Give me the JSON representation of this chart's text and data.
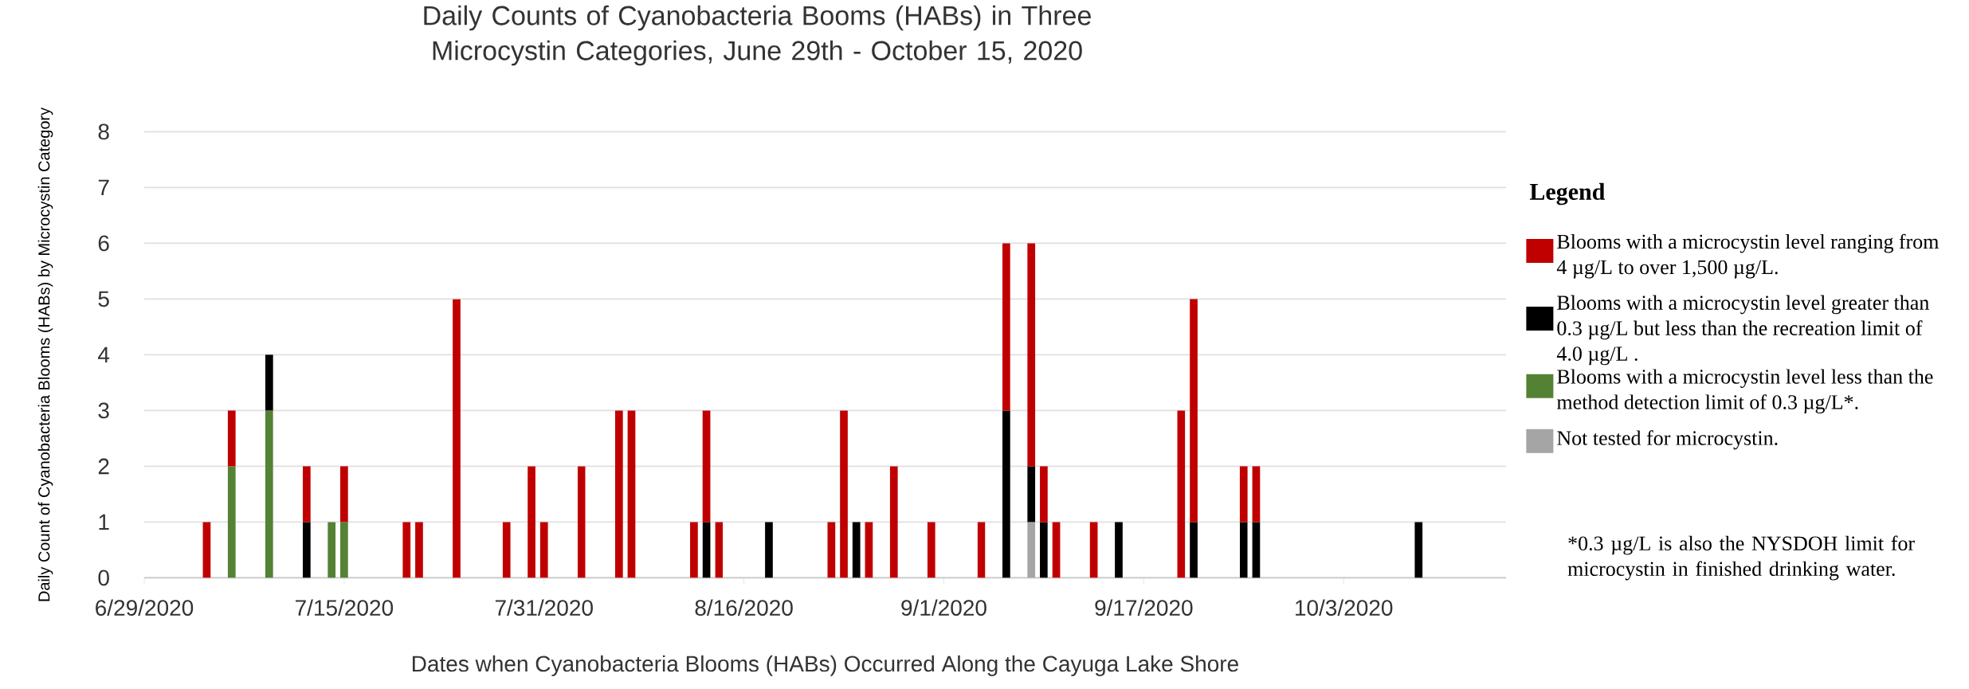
{
  "chart_data": {
    "type": "bar",
    "stacked": true,
    "title": "Daily Counts of Cyanobacteria Booms (HABs) in Three Microcystin Categories, June 29th - October 15, 2020",
    "xlabel": "Dates when Cyanobacteria Blooms (HABs) Occurred Along the Cayuga Lake Shore",
    "ylabel": "Daily Count of Cyanobacteria Blooms (HABs) by Microcystin Category",
    "legend_title": "Legend",
    "x": [
      "2020-07-04",
      "2020-07-06",
      "2020-07-09",
      "2020-07-12",
      "2020-07-14",
      "2020-07-15",
      "2020-07-20",
      "2020-07-21",
      "2020-07-24",
      "2020-07-28",
      "2020-07-30",
      "2020-07-31",
      "2020-08-03",
      "2020-08-06",
      "2020-08-07",
      "2020-08-12",
      "2020-08-13",
      "2020-08-14",
      "2020-08-18",
      "2020-08-23",
      "2020-08-24",
      "2020-08-25",
      "2020-08-26",
      "2020-08-28",
      "2020-08-31",
      "2020-09-04",
      "2020-09-06",
      "2020-09-08",
      "2020-09-09",
      "2020-09-10",
      "2020-09-13",
      "2020-09-15",
      "2020-09-20",
      "2020-09-21",
      "2020-09-25",
      "2020-09-26",
      "2020-10-09"
    ],
    "series": [
      {
        "name": "Not tested for microcystin.",
        "color": "#a5a5a5",
        "values": [
          null,
          null,
          null,
          null,
          null,
          null,
          null,
          null,
          null,
          null,
          null,
          null,
          null,
          null,
          null,
          null,
          null,
          null,
          null,
          null,
          null,
          null,
          null,
          null,
          null,
          null,
          null,
          1,
          null,
          null,
          null,
          null,
          null,
          null,
          null,
          null,
          null
        ]
      },
      {
        "name": "Blooms with a microcystin level less than the method detection limit of 0.3 µg/L*.",
        "color": "#548235",
        "values": [
          null,
          2,
          3,
          null,
          1,
          1,
          null,
          null,
          null,
          null,
          null,
          null,
          null,
          null,
          null,
          null,
          null,
          null,
          null,
          null,
          null,
          null,
          null,
          null,
          null,
          null,
          null,
          null,
          null,
          null,
          null,
          null,
          null,
          null,
          null,
          null,
          null
        ]
      },
      {
        "name": "Blooms with a microcystin level greater than 0.3 µg/L but less than the recreation limit of 4.0 µg/L .",
        "color": "#000000",
        "values": [
          null,
          null,
          1,
          1,
          null,
          null,
          null,
          null,
          null,
          null,
          null,
          null,
          null,
          null,
          null,
          null,
          1,
          null,
          1,
          null,
          null,
          1,
          null,
          null,
          null,
          null,
          3,
          1,
          1,
          null,
          null,
          1,
          null,
          1,
          1,
          1,
          1
        ]
      },
      {
        "name": "Blooms with a microcystin level ranging from 4 µg/L to over 1,500 µg/L.",
        "color": "#c00000",
        "values": [
          1,
          1,
          null,
          1,
          null,
          1,
          1,
          1,
          5,
          1,
          2,
          1,
          2,
          3,
          3,
          1,
          2,
          1,
          null,
          1,
          3,
          null,
          1,
          2,
          1,
          1,
          3,
          4,
          1,
          1,
          1,
          null,
          3,
          4,
          1,
          1,
          null
        ]
      }
    ],
    "xlim": [
      "2020-06-29",
      "2020-10-16"
    ],
    "xticks": [
      {
        "value": "2020-06-29",
        "label": "6/29/2020"
      },
      {
        "value": "2020-07-15",
        "label": "7/15/2020"
      },
      {
        "value": "2020-07-31",
        "label": "7/31/2020"
      },
      {
        "value": "2020-08-16",
        "label": "8/16/2020"
      },
      {
        "value": "2020-09-01",
        "label": "9/1/2020"
      },
      {
        "value": "2020-09-17",
        "label": "9/17/2020"
      },
      {
        "value": "2020-10-03",
        "label": "10/3/2020"
      }
    ],
    "ylim": [
      0,
      8
    ],
    "yticks": [
      0,
      1,
      2,
      3,
      4,
      5,
      6,
      7,
      8
    ],
    "grid": "y",
    "legend": "right",
    "annotations": [
      "*0.3 µg/L is also the NYSDOH limit for microcystin in finished drinking water."
    ]
  }
}
